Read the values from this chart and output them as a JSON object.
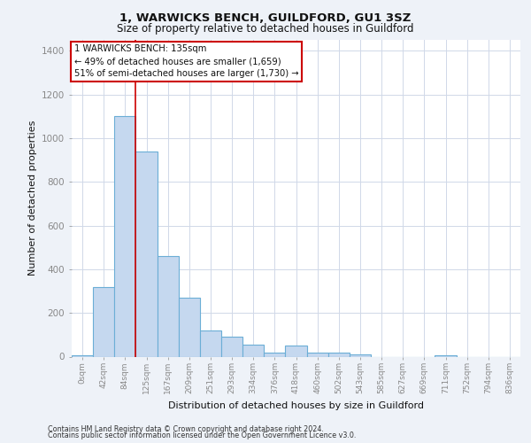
{
  "title1": "1, WARWICKS BENCH, GUILDFORD, GU1 3SZ",
  "title2": "Size of property relative to detached houses in Guildford",
  "xlabel": "Distribution of detached houses by size in Guildford",
  "ylabel": "Number of detached properties",
  "categories": [
    "0sqm",
    "42sqm",
    "84sqm",
    "125sqm",
    "167sqm",
    "209sqm",
    "251sqm",
    "293sqm",
    "334sqm",
    "376sqm",
    "418sqm",
    "460sqm",
    "502sqm",
    "543sqm",
    "585sqm",
    "627sqm",
    "669sqm",
    "711sqm",
    "752sqm",
    "794sqm",
    "836sqm"
  ],
  "values": [
    5,
    320,
    1100,
    940,
    460,
    270,
    120,
    90,
    55,
    20,
    50,
    20,
    20,
    10,
    0,
    0,
    0,
    5,
    0,
    0,
    0
  ],
  "bar_color": "#c5d8ef",
  "bar_edge_color": "#6baed6",
  "red_line_x": 2.5,
  "annotation_line1": "1 WARWICKS BENCH: 135sqm",
  "annotation_line2": "← 49% of detached houses are smaller (1,659)",
  "annotation_line3": "51% of semi-detached houses are larger (1,730) →",
  "annotation_box_color": "#ffffff",
  "annotation_box_edge_color": "#cc0000",
  "vline_color": "#cc0000",
  "ylim": [
    0,
    1450
  ],
  "yticks": [
    0,
    200,
    400,
    600,
    800,
    1000,
    1200,
    1400
  ],
  "footer1": "Contains HM Land Registry data © Crown copyright and database right 2024.",
  "footer2": "Contains public sector information licensed under the Open Government Licence v3.0.",
  "background_color": "#eef2f8",
  "plot_background": "#ffffff",
  "grid_color": "#d0d8e8"
}
